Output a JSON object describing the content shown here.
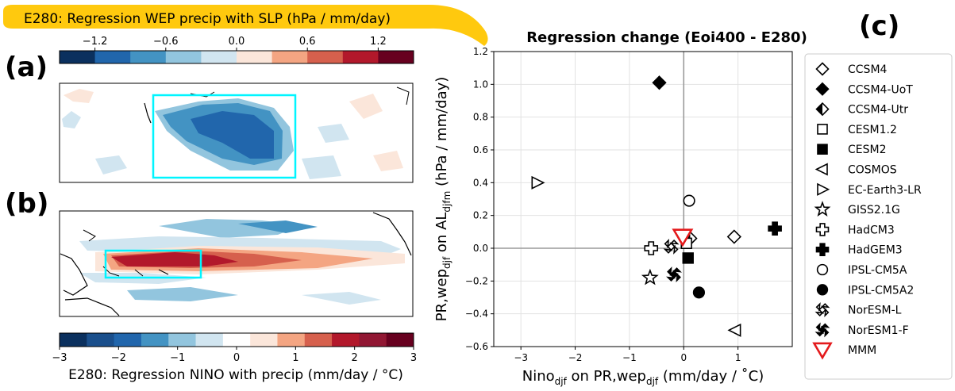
{
  "panel_a": {
    "label": "(a)",
    "title": "E280: Regression WEP precip with SLP (hPa / mm/day)",
    "colorbar": {
      "range": [
        -1.5,
        1.5
      ],
      "ticks": [
        "−1.2",
        "−0.6",
        "0.0",
        "0.6",
        "1.2"
      ],
      "tick_values": [
        -1.2,
        -0.6,
        0.0,
        0.6,
        1.2
      ],
      "colors": [
        "#0b305e",
        "#2166ac",
        "#4393c3",
        "#92c5de",
        "#d1e5f0",
        "#fbe6da",
        "#f4a582",
        "#d6604d",
        "#b2182b",
        "#67001f"
      ]
    }
  },
  "panel_b": {
    "label": "(b)",
    "colorbar": {
      "label": "E280: Regression NINO with precip (mm/day / °C)",
      "range": [
        -3,
        3
      ],
      "ticks": [
        "−3",
        "−2",
        "−1",
        "0",
        "1",
        "2",
        "3"
      ],
      "tick_values": [
        -3,
        -2,
        -1,
        0,
        1,
        2,
        3
      ],
      "colors": [
        "#0b305e",
        "#1a4f8c",
        "#2166ac",
        "#4393c3",
        "#92c5de",
        "#d1e5f0",
        "#ffffff",
        "#fbe6da",
        "#f4a582",
        "#d6604d",
        "#b2182b",
        "#911733",
        "#67001f"
      ]
    }
  },
  "panel_c": {
    "label": "(c)"
  },
  "chart_data": {
    "type": "scatter",
    "title": "Regression change (Eoi400 - E280)",
    "xlabel": "Nino",
    "xlabel_sub": "djf",
    "xlabel_rest": " on PR,wep",
    "xlabel_sub2": "djf",
    "xlabel_end": " (mm/day / ˚C)",
    "ylabel": "PR,wep",
    "ylabel_sub": "djf",
    "ylabel_rest": " on AL",
    "ylabel_sub2": "djfm",
    "ylabel_end": " (hPa / mm/day)",
    "xlim": [
      -3.5,
      2.0
    ],
    "ylim": [
      -0.6,
      1.2
    ],
    "xticks": [
      -3,
      -2,
      -1,
      0,
      1
    ],
    "yticks": [
      -0.6,
      -0.4,
      -0.2,
      0.0,
      0.2,
      0.4,
      0.6,
      0.8,
      1.0,
      1.2
    ],
    "xtick_labels": [
      "−3",
      "−2",
      "−1",
      "0",
      "1"
    ],
    "ytick_labels": [
      "−0.6",
      "−0.4",
      "−0.2",
      "0.0",
      "0.2",
      "0.4",
      "0.6",
      "0.8",
      "1.0",
      "1.2"
    ],
    "grid": true,
    "legend_position": "right",
    "series": [
      {
        "name": "CCSM4",
        "marker": "diamond-open",
        "x": 0.93,
        "y": 0.07
      },
      {
        "name": "CCSM4-UoT",
        "marker": "diamond-filled",
        "x": -0.45,
        "y": 1.01
      },
      {
        "name": "CCSM4-Utr",
        "marker": "diamond-half",
        "x": 0.12,
        "y": 0.06
      },
      {
        "name": "CESM1.2",
        "marker": "square-open",
        "x": 0.05,
        "y": 0.03
      },
      {
        "name": "CESM2",
        "marker": "square-filled",
        "x": 0.08,
        "y": -0.06
      },
      {
        "name": "COSMOS",
        "marker": "triangle-left-open",
        "x": 0.95,
        "y": -0.5
      },
      {
        "name": "EC-Earth3-LR",
        "marker": "triangle-right-open",
        "x": -2.7,
        "y": 0.4
      },
      {
        "name": "GISS2.1G",
        "marker": "star-open",
        "x": -0.62,
        "y": -0.18
      },
      {
        "name": "HadCM3",
        "marker": "plus-open",
        "x": -0.6,
        "y": 0.0
      },
      {
        "name": "HadGEM3",
        "marker": "plus-filled",
        "x": 1.68,
        "y": 0.12
      },
      {
        "name": "IPSL-CM5A",
        "marker": "circle-open",
        "x": 0.1,
        "y": 0.29
      },
      {
        "name": "IPSL-CM5A2",
        "marker": "circle-filled",
        "x": 0.28,
        "y": -0.27
      },
      {
        "name": "NorESM-L",
        "marker": "x-open",
        "x": -0.23,
        "y": 0.01
      },
      {
        "name": "NorESM1-F",
        "marker": "x-filled",
        "x": -0.18,
        "y": -0.16
      },
      {
        "name": "MMM",
        "marker": "triangle-down-red",
        "x": -0.02,
        "y": 0.07
      }
    ]
  }
}
